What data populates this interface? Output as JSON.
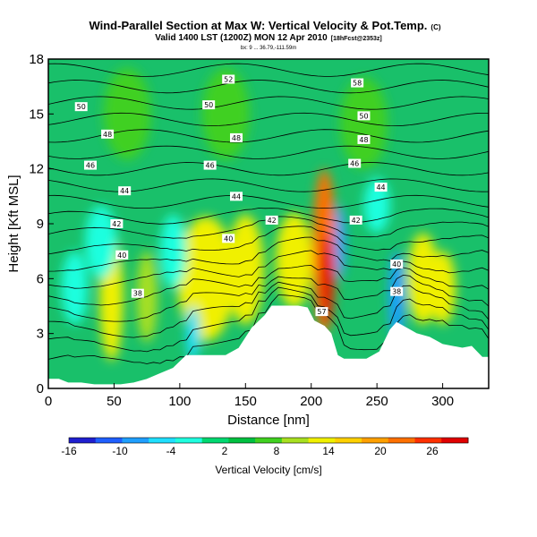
{
  "title": "Wind-Parallel Section at Max W: Vertical Velocity & Pot.Temp.",
  "title_mark": "(C)",
  "subtitle": "Valid 1400 LST (1200Z) MON 12 Apr 2010",
  "subtitle_tag": "[18hFcst@2353z]",
  "subsubtitle": "bx: 9 ... 36.79,-111.59m",
  "chart_data": {
    "type": "heatmap",
    "xlabel": "Distance [nm]",
    "ylabel": "Height [Kft MSL]",
    "xlim": [
      0,
      335
    ],
    "ylim": [
      0,
      18
    ],
    "x_ticks": [
      "0",
      "50",
      "100",
      "150",
      "200",
      "250",
      "300"
    ],
    "y_ticks": [
      "0",
      "3",
      "6",
      "9",
      "12",
      "15",
      "18"
    ],
    "colorbar_label": "Vertical Velocity [cm/s]",
    "colorbar_ticks": [
      "-16",
      "-10",
      "-4",
      "2",
      "8",
      "14",
      "20",
      "26"
    ],
    "colorbar_colors": [
      "#1f1fcf",
      "#1f5fff",
      "#1f9fff",
      "#1fdfff",
      "#1fffdf",
      "#00d870",
      "#00c040",
      "#40d020",
      "#a8e020",
      "#f0f000",
      "#ffd000",
      "#ffa000",
      "#ff7000",
      "#ff3000",
      "#e00000"
    ],
    "contour_levels": [
      "38",
      "40",
      "42",
      "44",
      "46",
      "48",
      "50",
      "52",
      "58",
      "57"
    ],
    "contour_labels": [
      {
        "text": "52",
        "x": 137,
        "y": 16.9
      },
      {
        "text": "58",
        "x": 235,
        "y": 16.7
      },
      {
        "text": "50",
        "x": 25,
        "y": 15.4
      },
      {
        "text": "50",
        "x": 122,
        "y": 15.5
      },
      {
        "text": "50",
        "x": 240,
        "y": 14.9
      },
      {
        "text": "48",
        "x": 45,
        "y": 13.9
      },
      {
        "text": "48",
        "x": 143,
        "y": 13.7
      },
      {
        "text": "48",
        "x": 240,
        "y": 13.6
      },
      {
        "text": "46",
        "x": 32,
        "y": 12.2
      },
      {
        "text": "46",
        "x": 123,
        "y": 12.2
      },
      {
        "text": "46",
        "x": 233,
        "y": 12.3
      },
      {
        "text": "44",
        "x": 58,
        "y": 10.8
      },
      {
        "text": "44",
        "x": 143,
        "y": 10.5
      },
      {
        "text": "44",
        "x": 253,
        "y": 11.0
      },
      {
        "text": "42",
        "x": 52,
        "y": 9.0
      },
      {
        "text": "42",
        "x": 170,
        "y": 9.2
      },
      {
        "text": "42",
        "x": 234,
        "y": 9.2
      },
      {
        "text": "40",
        "x": 56,
        "y": 7.3
      },
      {
        "text": "40",
        "x": 137,
        "y": 8.2
      },
      {
        "text": "40",
        "x": 265,
        "y": 6.8
      },
      {
        "text": "38",
        "x": 68,
        "y": 5.2
      },
      {
        "text": "38",
        "x": 265,
        "y": 5.3
      },
      {
        "text": "57",
        "x": 208,
        "y": 4.2
      }
    ],
    "terrain": [
      [
        0,
        0.5
      ],
      [
        8,
        0.5
      ],
      [
        15,
        0.3
      ],
      [
        25,
        0.3
      ],
      [
        35,
        0.2
      ],
      [
        45,
        0.2
      ],
      [
        55,
        0.2
      ],
      [
        65,
        0.3
      ],
      [
        75,
        0.5
      ],
      [
        85,
        0.8
      ],
      [
        95,
        1.1
      ],
      [
        105,
        1.8
      ],
      [
        115,
        1.8
      ],
      [
        125,
        1.8
      ],
      [
        135,
        1.8
      ],
      [
        145,
        2.2
      ],
      [
        155,
        3.3
      ],
      [
        165,
        4.0
      ],
      [
        170,
        4.5
      ],
      [
        180,
        4.5
      ],
      [
        190,
        4.5
      ],
      [
        197,
        4.4
      ],
      [
        202,
        3.7
      ],
      [
        210,
        3.4
      ],
      [
        215,
        3.0
      ],
      [
        220,
        1.8
      ],
      [
        225,
        1.6
      ],
      [
        232,
        1.6
      ],
      [
        242,
        1.6
      ],
      [
        252,
        2.0
      ],
      [
        260,
        3.2
      ],
      [
        265,
        3.6
      ],
      [
        275,
        3.2
      ],
      [
        280,
        3.0
      ],
      [
        290,
        2.8
      ],
      [
        300,
        2.4
      ],
      [
        315,
        2.2
      ],
      [
        322,
        2.3
      ],
      [
        330,
        1.7
      ],
      [
        335,
        1.7
      ]
    ],
    "velocity_blobs": [
      {
        "x": 120,
        "y": 6.0,
        "rx": 22,
        "ry": 3.4,
        "value": 10
      },
      {
        "x": 150,
        "y": 6.5,
        "rx": 14,
        "ry": 3.0,
        "value": 12
      },
      {
        "x": 187,
        "y": 7.0,
        "rx": 14,
        "ry": 2.6,
        "value": 11
      },
      {
        "x": 210,
        "y": 7.5,
        "rx": 9,
        "ry": 4.5,
        "value": 22
      },
      {
        "x": 212,
        "y": 6.0,
        "rx": 5,
        "ry": 2.5,
        "value": 26
      },
      {
        "x": 48,
        "y": 5.0,
        "rx": 9,
        "ry": 3.5,
        "value": 10
      },
      {
        "x": 75,
        "y": 5.0,
        "rx": 8,
        "ry": 2.5,
        "value": 8
      },
      {
        "x": 285,
        "y": 6.0,
        "rx": 12,
        "ry": 2.5,
        "value": 12
      },
      {
        "x": 300,
        "y": 5.5,
        "rx": 10,
        "ry": 2.0,
        "value": 10
      },
      {
        "x": 60,
        "y": 15.0,
        "rx": 18,
        "ry": 2.5,
        "value": 5
      },
      {
        "x": 135,
        "y": 15.0,
        "rx": 18,
        "ry": 2.5,
        "value": 5
      },
      {
        "x": 240,
        "y": 14.5,
        "rx": 18,
        "ry": 2.5,
        "value": 5
      },
      {
        "x": 40,
        "y": 8.0,
        "rx": 12,
        "ry": 2.0,
        "value": -6
      },
      {
        "x": 20,
        "y": 5.5,
        "rx": 10,
        "ry": 2.0,
        "value": -5
      },
      {
        "x": 110,
        "y": 3.0,
        "rx": 5,
        "ry": 1.5,
        "value": -8
      },
      {
        "x": 265,
        "y": 5.0,
        "rx": 6,
        "ry": 2.5,
        "value": -12
      },
      {
        "x": 222,
        "y": 8.0,
        "rx": 4,
        "ry": 2.0,
        "value": -10
      },
      {
        "x": 95,
        "y": 7.5,
        "rx": 10,
        "ry": 2.0,
        "value": -4
      },
      {
        "x": 250,
        "y": 10.0,
        "rx": 10,
        "ry": 1.5,
        "value": -4
      }
    ]
  }
}
